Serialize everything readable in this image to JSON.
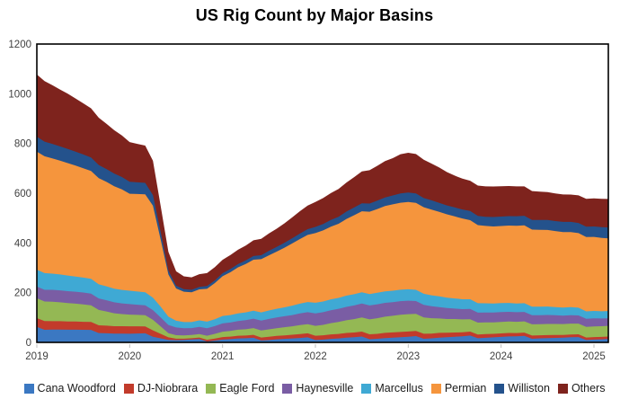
{
  "title": "US Rig Count by Major Basins",
  "axes": {
    "y_tick_labels": [
      "0",
      "200",
      "400",
      "600",
      "800",
      "1000",
      "1200"
    ],
    "x_tick_labels": [
      "2019",
      "2020",
      "2021",
      "2022",
      "2023",
      "2024",
      "2025"
    ]
  },
  "chart_data": {
    "type": "area",
    "stacked": true,
    "title": "US Rig Count by Major Basins",
    "xlabel": "",
    "ylabel": "",
    "ylim": [
      0,
      1200
    ],
    "yticks": [
      0,
      200,
      400,
      600,
      800,
      1000,
      1200
    ],
    "xticks": [
      2019,
      2020,
      2021,
      2022,
      2023,
      2024,
      2025
    ],
    "grid": false,
    "legend_position": "bottom",
    "x_unit": "month",
    "x_start": "2019-01",
    "x_end": "2025-03",
    "series": [
      {
        "name": "Cana Woodford",
        "color": "#3B78C2",
        "values": [
          57,
          56,
          55,
          53,
          51,
          49,
          47,
          45,
          43,
          40,
          37,
          35,
          33,
          32,
          31,
          28,
          20,
          12,
          9,
          8,
          8,
          8,
          9,
          11,
          13,
          13,
          14,
          13,
          13,
          13,
          13,
          14,
          14,
          14,
          14,
          15,
          15,
          15,
          16,
          16,
          17,
          17,
          18,
          18,
          18,
          19,
          19,
          19,
          19,
          20,
          20,
          20,
          21,
          21,
          21,
          21,
          22,
          22,
          22,
          22,
          22,
          22,
          21,
          21,
          20,
          20,
          19,
          18,
          17,
          17,
          16,
          15,
          15,
          14,
          14
        ]
      },
      {
        "name": "DJ-Niobrara",
        "color": "#C23B2B",
        "values": [
          35,
          35,
          34,
          34,
          33,
          33,
          32,
          32,
          31,
          31,
          30,
          30,
          30,
          29,
          28,
          26,
          18,
          10,
          6,
          5,
          5,
          6,
          7,
          8,
          10,
          10,
          11,
          11,
          12,
          12,
          13,
          14,
          14,
          15,
          16,
          16,
          17,
          17,
          18,
          18,
          19,
          19,
          20,
          20,
          20,
          21,
          21,
          21,
          21,
          21,
          20,
          19,
          19,
          18,
          17,
          16,
          16,
          15,
          15,
          14,
          14,
          14,
          13,
          13,
          13,
          12,
          12,
          12,
          11,
          11,
          11,
          10,
          10,
          10,
          10
        ]
      },
      {
        "name": "Eagle Ford",
        "color": "#94B854",
        "values": [
          80,
          79,
          78,
          76,
          74,
          72,
          70,
          67,
          62,
          57,
          52,
          49,
          47,
          46,
          45,
          42,
          30,
          17,
          14,
          13,
          13,
          14,
          16,
          19,
          22,
          23,
          24,
          25,
          27,
          28,
          30,
          31,
          33,
          34,
          36,
          37,
          40,
          42,
          45,
          48,
          51,
          54,
          57,
          60,
          63,
          65,
          67,
          69,
          70,
          68,
          66,
          62,
          58,
          55,
          54,
          52,
          50,
          48,
          47,
          46,
          46,
          46,
          45,
          45,
          45,
          45,
          45,
          44,
          44,
          44,
          43,
          43,
          43,
          43,
          43
        ]
      },
      {
        "name": "Haynesville",
        "color": "#7A5DA4",
        "values": [
          47,
          47,
          48,
          48,
          48,
          48,
          48,
          47,
          46,
          45,
          44,
          43,
          42,
          41,
          40,
          39,
          36,
          33,
          31,
          29,
          28,
          29,
          30,
          31,
          33,
          34,
          35,
          37,
          38,
          40,
          42,
          43,
          44,
          45,
          47,
          48,
          50,
          51,
          52,
          53,
          54,
          55,
          56,
          56,
          56,
          56,
          55,
          55,
          54,
          52,
          50,
          48,
          46,
          44,
          42,
          41,
          41,
          40,
          40,
          40,
          40,
          39,
          39,
          38,
          37,
          36,
          36,
          35,
          34,
          34,
          33,
          32,
          32,
          31,
          30
        ]
      },
      {
        "name": "Marcellus",
        "color": "#3FA9D4",
        "values": [
          68,
          67,
          65,
          64,
          63,
          61,
          60,
          59,
          57,
          56,
          55,
          54,
          54,
          53,
          52,
          50,
          43,
          33,
          27,
          25,
          24,
          26,
          27,
          28,
          30,
          30,
          31,
          31,
          32,
          33,
          34,
          35,
          36,
          38,
          39,
          41,
          43,
          43,
          44,
          44,
          45,
          45,
          45,
          46,
          46,
          46,
          46,
          46,
          46,
          45,
          45,
          44,
          43,
          42,
          41,
          40,
          39,
          38,
          37,
          36,
          36,
          36,
          35,
          35,
          34,
          34,
          34,
          33,
          32,
          32,
          31,
          30,
          30,
          29,
          29
        ]
      },
      {
        "name": "Permian",
        "color": "#F5953D",
        "values": [
          475,
          470,
          464,
          458,
          452,
          446,
          440,
          434,
          427,
          420,
          412,
          404,
          390,
          392,
          394,
          370,
          270,
          170,
          130,
          122,
          120,
          125,
          132,
          145,
          160,
          172,
          185,
          195,
          205,
          214,
          222,
          230,
          240,
          250,
          260,
          270,
          280,
          286,
          292,
          298,
          308,
          318,
          326,
          331,
          337,
          343,
          347,
          350,
          351,
          350,
          348,
          345,
          340,
          335,
          330,
          325,
          318,
          314,
          311,
          310,
          310,
          311,
          312,
          313,
          310,
          309,
          308,
          306,
          304,
          302,
          300,
          299,
          298,
          295,
          292
        ]
      },
      {
        "name": "Williston",
        "color": "#24528C",
        "values": [
          60,
          59,
          58,
          57,
          57,
          56,
          55,
          54,
          53,
          52,
          51,
          50,
          48,
          47,
          46,
          43,
          30,
          16,
          11,
          10,
          10,
          10,
          11,
          11,
          12,
          13,
          13,
          14,
          15,
          16,
          18,
          19,
          20,
          21,
          22,
          23,
          25,
          26,
          27,
          28,
          30,
          31,
          32,
          33,
          34,
          35,
          36,
          37,
          38,
          38,
          37,
          37,
          36,
          36,
          36,
          36,
          37,
          37,
          37,
          38,
          38,
          38,
          39,
          39,
          39,
          40,
          40,
          40,
          41,
          41,
          41,
          42,
          42,
          43,
          44
        ]
      },
      {
        "name": "Others",
        "color": "#7E231D",
        "values": [
          250,
          243,
          236,
          229,
          222,
          214,
          206,
          198,
          190,
          182,
          174,
          167,
          160,
          155,
          150,
          138,
          105,
          75,
          58,
          52,
          50,
          51,
          52,
          53,
          54,
          56,
          58,
          60,
          63,
          66,
          70,
          73,
          78,
          84,
          90,
          95,
          100,
          104,
          108,
          112,
          117,
          122,
          128,
          134,
          140,
          146,
          150,
          158,
          160,
          158,
          154,
          148,
          142,
          134,
          128,
          124,
          122,
          122,
          122,
          123,
          122,
          121,
          120,
          118,
          116,
          114,
          112,
          111,
          110,
          110,
          111,
          112,
          113,
          114,
          115
        ]
      }
    ]
  }
}
